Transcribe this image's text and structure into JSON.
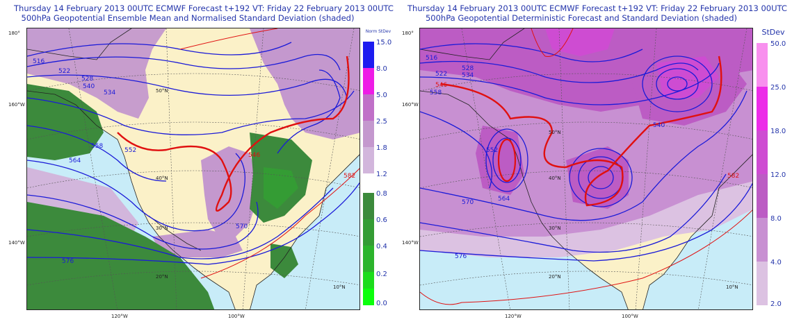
{
  "left": {
    "title1": "Thursday 14 February 2013 00UTC ECMWF Forecast t+192  VT: Friday 22 February 2013 00UTC",
    "title2": "500hPa Geopotential Ensemble Mean and Normalised Standard Deviation (shaded)",
    "colorbar_title": "Norm StDev",
    "colorbar_ticks": [
      "15.0",
      "8.0",
      "5.0",
      "2.5",
      "1.8",
      "1.2",
      "0.8",
      "0.6",
      "0.4",
      "0.2",
      "0.0"
    ],
    "colorbar_colors": [
      "#1c1cf0",
      "#ee1ce6",
      "#c070c8",
      "#c498ce",
      "#d2b6dc",
      "#3c8a3c",
      "#349c34",
      "#2cb42c",
      "#1cdc1c",
      "#0cff0c"
    ],
    "contour_labels": [
      "516",
      "522",
      "528",
      "534",
      "540",
      "546",
      "552",
      "558",
      "564",
      "570",
      "576",
      "582"
    ],
    "lon_labels": [
      "180°",
      "160°W",
      "140°W",
      "120°W",
      "100°W"
    ],
    "lat_labels": [
      "50°N",
      "40°N",
      "30°N",
      "20°N",
      "10°N"
    ]
  },
  "right": {
    "title1": "Thursday 14 February 2013 00UTC ECMWF Forecast t+192  VT: Friday 22 February 2013 00UTC",
    "title2": "500hPa Geopotential Deterministic Forecast and Standard Deviation (shaded)",
    "colorbar_title": "StDev",
    "colorbar_ticks": [
      "50.0",
      "25.0",
      "18.0",
      "12.0",
      "8.0",
      "4.0",
      "2.0"
    ],
    "colorbar_colors": [
      "#f890ee",
      "#ec2ce8",
      "#ce4cd2",
      "#bc5cc4",
      "#c890d2",
      "#dcc2e2"
    ],
    "contour_labels": [
      "516",
      "522",
      "528",
      "534",
      "540",
      "546",
      "552",
      "558",
      "564",
      "570",
      "576",
      "582"
    ],
    "lon_labels": [
      "180°",
      "160°W",
      "140°W",
      "120°W",
      "100°W"
    ],
    "lat_labels": [
      "50°N",
      "40°N",
      "30°N",
      "20°N",
      "10°N"
    ]
  },
  "colors": {
    "title": "#2233aa",
    "ocean": "#c8ecf8",
    "land": "#fbf1c8",
    "contour": "#1a1ad8",
    "contour_highlight": "#e01010"
  }
}
